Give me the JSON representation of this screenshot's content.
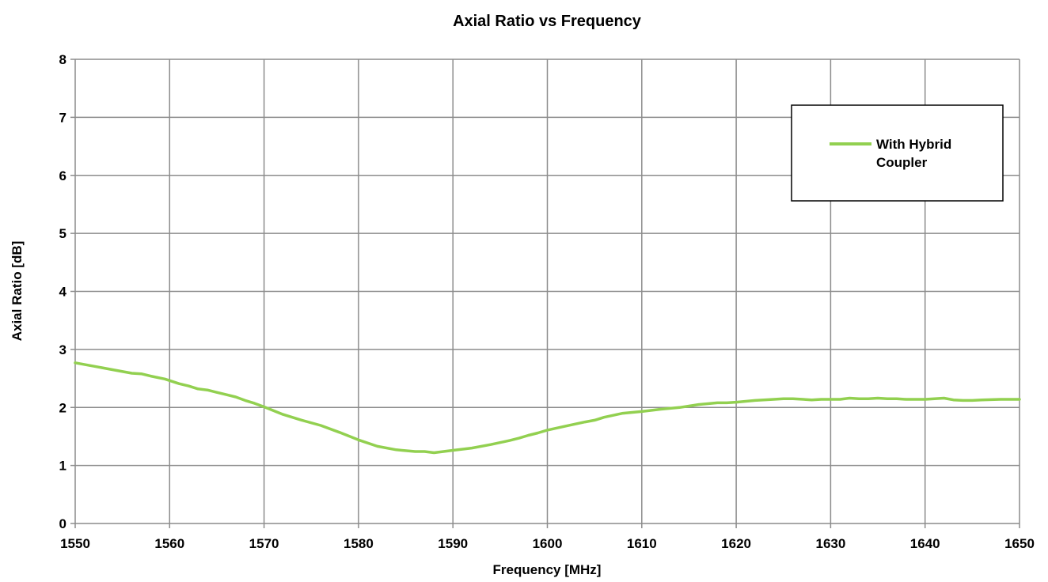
{
  "chart_data": {
    "type": "line",
    "title": "Axial Ratio vs Frequency",
    "xlabel": "Frequency [MHz]",
    "ylabel": "Axial Ratio [dB]",
    "xlim": [
      1550,
      1650
    ],
    "ylim": [
      0,
      8
    ],
    "xticks": [
      "1550",
      "1560",
      "1570",
      "1580",
      "1590",
      "1600",
      "1610",
      "1620",
      "1630",
      "1640",
      "1650"
    ],
    "yticks": [
      "0",
      "1",
      "2",
      "3",
      "4",
      "5",
      "6",
      "7",
      "8"
    ],
    "grid": true,
    "legend_position": "top-right",
    "series": [
      {
        "name": "With Hybrid Coupler",
        "color": "#92d050",
        "x": [
          1550,
          1552,
          1554,
          1556,
          1557,
          1558,
          1559.5,
          1561,
          1562,
          1563,
          1564,
          1565,
          1566,
          1567,
          1568,
          1569,
          1570,
          1572,
          1574,
          1576,
          1578,
          1580,
          1582,
          1584,
          1586,
          1587,
          1588,
          1590,
          1592,
          1594,
          1596,
          1597,
          1598,
          1599,
          1600,
          1602,
          1604,
          1605,
          1606,
          1608,
          1610,
          1612,
          1614,
          1616,
          1618,
          1619,
          1620,
          1622,
          1624,
          1625,
          1626,
          1628,
          1629,
          1630,
          1631,
          1632,
          1633,
          1634,
          1635,
          1636,
          1637,
          1638,
          1639,
          1640,
          1641,
          1642,
          1643,
          1644,
          1645,
          1646,
          1648,
          1650
        ],
        "y": [
          2.77,
          2.71,
          2.65,
          2.59,
          2.58,
          2.54,
          2.49,
          2.41,
          2.37,
          2.32,
          2.3,
          2.26,
          2.22,
          2.18,
          2.12,
          2.07,
          2.01,
          1.88,
          1.78,
          1.69,
          1.57,
          1.44,
          1.33,
          1.27,
          1.24,
          1.24,
          1.22,
          1.26,
          1.3,
          1.36,
          1.43,
          1.47,
          1.52,
          1.56,
          1.61,
          1.68,
          1.75,
          1.78,
          1.83,
          1.9,
          1.93,
          1.97,
          2.0,
          2.05,
          2.08,
          2.08,
          2.09,
          2.12,
          2.14,
          2.15,
          2.15,
          2.13,
          2.14,
          2.14,
          2.14,
          2.16,
          2.15,
          2.15,
          2.16,
          2.15,
          2.15,
          2.14,
          2.14,
          2.14,
          2.15,
          2.16,
          2.13,
          2.12,
          2.12,
          2.13,
          2.14,
          2.14
        ]
      }
    ]
  }
}
